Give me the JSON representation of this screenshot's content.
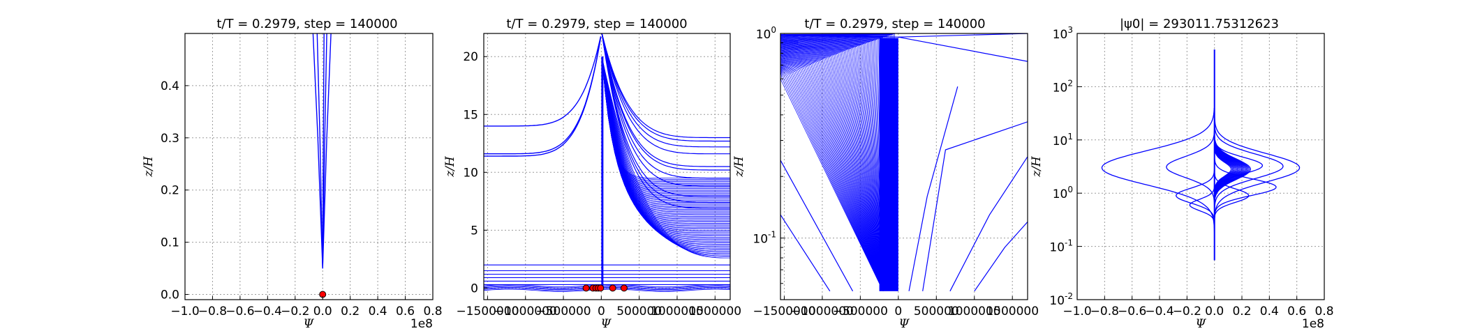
{
  "figure": {
    "background": "#ffffff"
  },
  "colors": {
    "line": "#0000ff",
    "marker": "#ff0000",
    "marker_edge": "#000000",
    "grid": "#9a9a9a",
    "axes": "#000000"
  },
  "chart_data": [
    {
      "type": "line",
      "title": "t/T = 0.2979, step = 140000",
      "xlabel": "Ψ",
      "ylabel": "z/H",
      "xlim": [
        -1.0,
        0.8
      ],
      "ylim": [
        -0.01,
        0.5
      ],
      "xticks": [
        "−1.0",
        "−0.8",
        "−0.6",
        "−0.4",
        "−0.2",
        "0.0",
        "0.2",
        "0.4",
        "0.6",
        "0.8"
      ],
      "yticks": [
        "0.0",
        "0.1",
        "0.2",
        "0.3",
        "0.4"
      ],
      "x_multiplier": "1e8",
      "grid": true,
      "series_summary": "narrow bundle of profiles converging at Ψ≈0 toward z/H≈0.05",
      "profiles": [
        {
          "x": [
            -0.07,
            -0.035,
            0.0
          ],
          "y": [
            0.5,
            0.3,
            0.05
          ]
        },
        {
          "x": [
            -0.04,
            -0.02,
            0.0
          ],
          "y": [
            0.5,
            0.3,
            0.05
          ]
        },
        {
          "x": [
            0.06,
            0.03,
            0.0
          ],
          "y": [
            0.5,
            0.3,
            0.05
          ]
        },
        {
          "x": [
            0.03,
            0.015,
            0.0
          ],
          "y": [
            0.5,
            0.3,
            0.05
          ]
        },
        {
          "x": [
            0.01,
            0.005,
            0.0
          ],
          "y": [
            0.5,
            0.3,
            0.05
          ]
        }
      ],
      "markers": {
        "x": [
          0.0
        ],
        "y": [
          0.0
        ]
      }
    },
    {
      "type": "line",
      "title": "t/T = 0.2979, step = 140000",
      "xlabel": "Ψ",
      "ylabel": "z/H",
      "xlim": [
        -1550000,
        1700000
      ],
      "ylim": [
        -1.0,
        22
      ],
      "xticks": [
        "−1500000",
        "−1000000",
        "−500000",
        "0",
        "500000",
        "1000000",
        "1500000"
      ],
      "yticks": [
        "0",
        "5",
        "10",
        "15",
        "20"
      ],
      "grid": true,
      "series_summary": "many profiles; hyperbolic branches near Ψ=0 and a dense fan of curves for Ψ>0",
      "markers": {
        "x": [
          -200000,
          -110000,
          -70000,
          -40000,
          -10000,
          150000,
          300000
        ],
        "y": [
          0,
          0,
          0,
          0,
          0,
          0,
          0
        ]
      }
    },
    {
      "type": "line",
      "title": "t/T = 0.2979, step = 140000",
      "xlabel": "Ψ",
      "ylabel": "z/H",
      "xlim": [
        -1550000,
        1700000
      ],
      "ylim": [
        0.05,
        1.0
      ],
      "yscale": "log",
      "xticks": [
        "−1500000",
        "−1000000",
        "−500000",
        "0",
        "500000",
        "1000000",
        "1500000"
      ],
      "yticks": [
        "10-1",
        "100"
      ],
      "grid": true,
      "series_summary": "dense fan of straight segments converging at Ψ<0 near z/H≈0.055"
    },
    {
      "type": "line",
      "title": "|ψ0| = 293011.75312623",
      "xlabel": "Ψ",
      "ylabel": "z/H",
      "xlim": [
        -1.0,
        0.8
      ],
      "ylim": [
        0.01,
        1000
      ],
      "yscale": "log",
      "xticks": [
        "−1.0",
        "−0.8",
        "−0.6",
        "−0.4",
        "−0.2",
        "0.0",
        "0.2",
        "0.4",
        "0.6",
        "0.8"
      ],
      "yticks": [
        "10-2",
        "10-1",
        "100",
        "101",
        "102",
        "103"
      ],
      "x_multiplier": "1e8",
      "grid": true,
      "series_summary": "wavelike profiles centered at Ψ=0 with extrema near z/H≈3 and z/H≈1",
      "profiles": [
        {
          "peak": -0.82,
          "zpeak": 3.0,
          "width": 0.45
        },
        {
          "peak": 0.62,
          "zpeak": 3.0,
          "width": 0.38
        },
        {
          "peak": 0.5,
          "zpeak": 3.2,
          "width": 0.32
        },
        {
          "peak": -0.35,
          "zpeak": 3.1,
          "width": 0.28
        },
        {
          "peak": 0.35,
          "zpeak": 3.3,
          "width": 0.22
        },
        {
          "peak": 0.45,
          "zpeak": 1.3,
          "width": 0.22
        },
        {
          "peak": -0.28,
          "zpeak": 0.9,
          "width": 0.2
        },
        {
          "peak": 0.25,
          "zpeak": 0.9,
          "width": 0.18
        },
        {
          "peak": -0.18,
          "zpeak": 0.6,
          "width": 0.15
        }
      ]
    }
  ]
}
